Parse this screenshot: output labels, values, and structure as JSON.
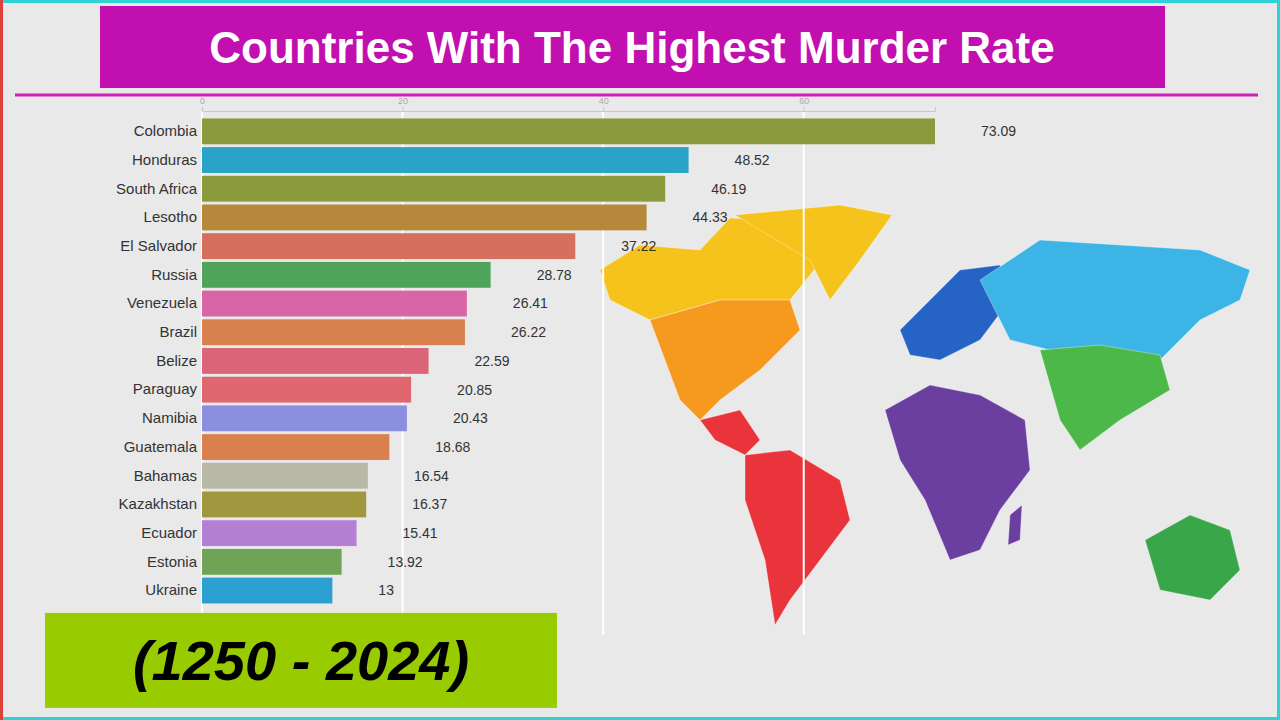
{
  "chart_data": {
    "type": "bar",
    "orientation": "horizontal",
    "title": "Countries With The Highest Murder Rate",
    "subtitle": "(1250 - 2024)",
    "categories": [
      "Colombia",
      "Honduras",
      "South Africa",
      "Lesotho",
      "El Salvador",
      "Russia",
      "Venezuela",
      "Brazil",
      "Belize",
      "Paraguay",
      "Namibia",
      "Guatemala",
      "Bahamas",
      "Kazakhstan",
      "Ecuador",
      "Estonia",
      "Ukraine"
    ],
    "values": [
      73.09,
      48.52,
      46.19,
      44.33,
      37.22,
      28.78,
      26.41,
      26.22,
      22.59,
      20.85,
      20.43,
      18.68,
      16.54,
      16.37,
      15.41,
      13.92,
      13
    ],
    "colors": [
      "#8a9a3c",
      "#2aa3c9",
      "#8a9a3c",
      "#b5883b",
      "#d4705c",
      "#4fa35a",
      "#d865a6",
      "#d9804f",
      "#dc6479",
      "#e0666f",
      "#8c8ee0",
      "#d9804f",
      "#b7b8a6",
      "#a1973e",
      "#b57fd4",
      "#6fa456",
      "#2ca0d0"
    ],
    "xlim": [
      0,
      73.09
    ],
    "xticks": [
      0,
      20,
      40,
      60
    ],
    "grid": true,
    "data_labels": true
  }
}
